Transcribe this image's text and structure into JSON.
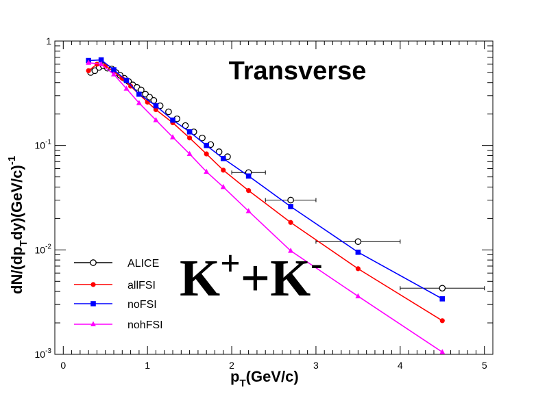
{
  "chart_data": {
    "type": "scatter",
    "title": "Transverse",
    "annotation": {
      "base1": "K",
      "sup1": "+",
      "mid": "+K",
      "sup2": "-"
    },
    "xlabel": {
      "main": "p",
      "sub": "T",
      "rest": "(GeV/c)"
    },
    "ylabel": {
      "part1": "dN/(dp",
      "sub": "T",
      "part2": "dy)(GeV/c)",
      "sup": "-1"
    },
    "xlim": [
      -0.1,
      5.1
    ],
    "ylim": [
      0.001,
      1
    ],
    "yscale": "log",
    "grid": false,
    "legend_position": "bottom-left",
    "x_ticks": [
      "0",
      "1",
      "2",
      "3",
      "4",
      "5"
    ],
    "y_ticks": [
      {
        "base": "1",
        "exp": ""
      },
      {
        "base": "10",
        "exp": "-1"
      },
      {
        "base": "10",
        "exp": "-2"
      },
      {
        "base": "10",
        "exp": "-3"
      }
    ],
    "series": [
      {
        "name": "ALICE",
        "color": "#000000",
        "marker": "open-circle",
        "line": false,
        "x": [
          0.325,
          0.375,
          0.425,
          0.475,
          0.525,
          0.575,
          0.625,
          0.675,
          0.725,
          0.775,
          0.825,
          0.875,
          0.925,
          0.975,
          1.025,
          1.075,
          1.15,
          1.25,
          1.35,
          1.45,
          1.55,
          1.65,
          1.75,
          1.85,
          1.95,
          2.2,
          2.7,
          3.5,
          4.5
        ],
        "y": [
          0.5,
          0.52,
          0.56,
          0.58,
          0.55,
          0.54,
          0.5,
          0.47,
          0.44,
          0.41,
          0.38,
          0.36,
          0.34,
          0.31,
          0.29,
          0.27,
          0.24,
          0.21,
          0.18,
          0.155,
          0.135,
          0.118,
          0.102,
          0.087,
          0.078,
          0.055,
          0.03,
          0.012,
          0.0043
        ],
        "xerr": [
          0,
          0,
          0,
          0,
          0,
          0,
          0,
          0,
          0,
          0,
          0,
          0,
          0,
          0,
          0,
          0,
          0,
          0,
          0,
          0,
          0,
          0,
          0,
          0,
          0,
          0.2,
          0.3,
          0.5,
          0.5
        ]
      },
      {
        "name": "allFSI",
        "color": "#ff0000",
        "marker": "filled-circle",
        "line": true,
        "x": [
          0.3,
          0.4,
          0.5,
          0.6,
          0.7,
          0.8,
          0.9,
          1.0,
          1.1,
          1.3,
          1.5,
          1.7,
          1.9,
          2.2,
          2.7,
          3.5,
          4.5
        ],
        "y": [
          0.52,
          0.6,
          0.58,
          0.51,
          0.44,
          0.37,
          0.31,
          0.26,
          0.22,
          0.165,
          0.118,
          0.083,
          0.058,
          0.037,
          0.0183,
          0.0066,
          0.0021
        ]
      },
      {
        "name": "noFSI",
        "color": "#0000ff",
        "marker": "filled-square",
        "line": true,
        "x": [
          0.3,
          0.45,
          0.6,
          0.75,
          0.9,
          1.1,
          1.3,
          1.5,
          1.7,
          1.9,
          2.2,
          2.7,
          3.5,
          4.5
        ],
        "y": [
          0.65,
          0.66,
          0.53,
          0.42,
          0.31,
          0.24,
          0.175,
          0.135,
          0.1,
          0.075,
          0.051,
          0.026,
          0.0095,
          0.0034
        ]
      },
      {
        "name": "nohFSI",
        "color": "#ff00ff",
        "marker": "filled-triangle",
        "line": true,
        "x": [
          0.3,
          0.45,
          0.6,
          0.75,
          0.9,
          1.1,
          1.3,
          1.5,
          1.7,
          1.9,
          2.2,
          2.7,
          3.5,
          4.5
        ],
        "y": [
          0.62,
          0.6,
          0.48,
          0.35,
          0.255,
          0.175,
          0.12,
          0.083,
          0.056,
          0.04,
          0.0235,
          0.0098,
          0.0036,
          0.00105
        ]
      }
    ]
  }
}
